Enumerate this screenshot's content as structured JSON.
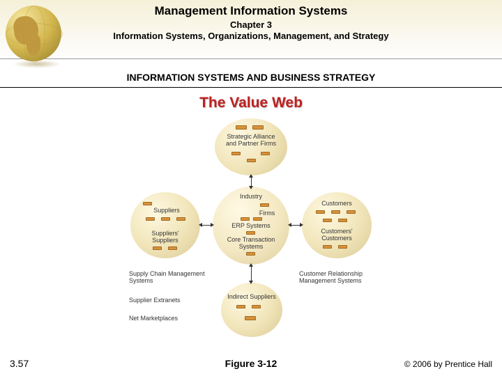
{
  "header": {
    "title": "Management Information Systems",
    "chapter": "Chapter 3",
    "subtitle": "Information Systems, Organizations, Management, and Strategy",
    "section": "INFORMATION SYSTEMS AND BUSINESS STRATEGY"
  },
  "slide": {
    "title": "The Value Web",
    "title_color": "#c02020"
  },
  "diagram": {
    "bubble_gradient": [
      "#fef8e0",
      "#f0e4b8",
      "#dccc98"
    ],
    "chip_color": "#d8923a",
    "chip_border": "#a06820",
    "nodes": {
      "top": {
        "label": "Strategic Alliance\nand Partner Firms"
      },
      "left": {
        "label1": "Suppliers",
        "label2": "Suppliers'\nSuppliers"
      },
      "center": {
        "label1": "Industry",
        "label2": "Firms",
        "label3": "ERP Systems",
        "label4": "Core Transaction\nSystems"
      },
      "right": {
        "label1": "Customers",
        "label2": "Customers'\nCustomers"
      },
      "bottom": {
        "label": "Indirect Suppliers"
      }
    },
    "side_labels": {
      "left1": "Supply Chain Management\nSystems",
      "left2": "Supplier Extranets",
      "left3": "Net Marketplaces",
      "right1": "Customer Relationship\nManagement Systems"
    }
  },
  "footer": {
    "page": "3.57",
    "figure": "Figure 3-12",
    "copyright": "© 2006 by Prentice Hall"
  }
}
